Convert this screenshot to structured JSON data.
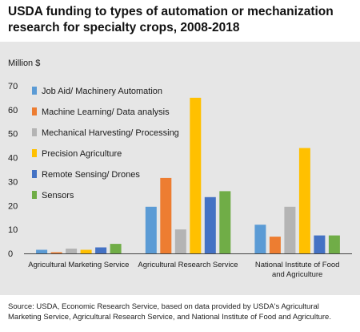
{
  "title": "USDA funding to types of automation or mechanization research for specialty crops, 2008-2018",
  "source": "Source: USDA, Economic Research Service, based on data provided by USDA's Agricultural Marketing Service, Agricultural Research Service, and National Institute of Food and Agriculture.",
  "chart_data": {
    "type": "bar",
    "title": "USDA funding to types of automation or mechanization research for specialty crops, 2008-2018",
    "ylabel": "Million $",
    "xlabel": "",
    "ylim": [
      0,
      70
    ],
    "yticks": [
      0,
      10,
      20,
      30,
      40,
      50,
      60,
      70
    ],
    "grid": false,
    "legend_position": "top-left",
    "categories": [
      [
        "Agricultural Marketing Service"
      ],
      [
        "Agricultural Research Service"
      ],
      [
        "National Institute of Food",
        "and Agriculture"
      ]
    ],
    "series": [
      {
        "name": "Job Aid/ Machinery Automation",
        "color": "#5b9bd5",
        "values": [
          1.5,
          19.5,
          12
        ]
      },
      {
        "name": "Machine Learning/ Data analysis",
        "color": "#ed7d31",
        "values": [
          0.5,
          31.5,
          7
        ]
      },
      {
        "name": "Mechanical Harvesting/ Processing",
        "color": "#b4b4b4",
        "values": [
          2,
          10,
          19.5
        ]
      },
      {
        "name": "Precision Agriculture",
        "color": "#ffc000",
        "values": [
          1.5,
          65,
          44
        ]
      },
      {
        "name": "Remote Sensing/ Drones",
        "color": "#4472c4",
        "values": [
          2.5,
          23.5,
          7.5
        ]
      },
      {
        "name": "Sensors",
        "color": "#70ad47",
        "values": [
          4,
          26,
          7.5
        ]
      }
    ]
  }
}
